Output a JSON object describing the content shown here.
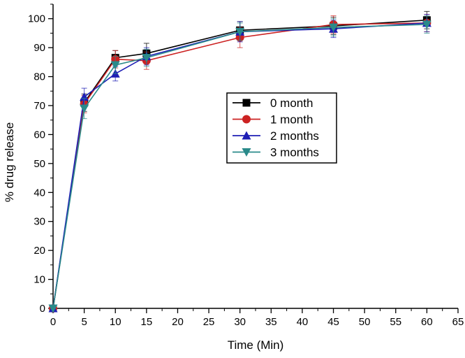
{
  "chart_data": {
    "type": "line",
    "title": "",
    "xlabel": "Time (Min)",
    "ylabel": "% drug release",
    "xlim": [
      0,
      65
    ],
    "ylim": [
      0,
      105
    ],
    "x_ticks": [
      0,
      5,
      10,
      15,
      20,
      25,
      30,
      35,
      40,
      45,
      50,
      55,
      60,
      65
    ],
    "y_ticks": [
      0,
      10,
      20,
      30,
      40,
      50,
      60,
      70,
      80,
      90,
      100
    ],
    "grid": false,
    "legend_position": "center-right",
    "x": [
      0,
      5,
      10,
      15,
      30,
      45,
      60
    ],
    "series": [
      {
        "name": "0 month",
        "color": "#000000",
        "marker": "square",
        "values": [
          0,
          71,
          86.5,
          88,
          96,
          97.5,
          99.5
        ],
        "errors": [
          0,
          3,
          2.5,
          3.5,
          3,
          3,
          3
        ]
      },
      {
        "name": "1 month",
        "color": "#cc2222",
        "marker": "circle",
        "values": [
          0,
          70.5,
          86,
          85.5,
          93.5,
          98,
          98.5
        ],
        "errors": [
          0,
          3,
          3,
          3,
          3.5,
          3,
          3
        ]
      },
      {
        "name": "2 months",
        "color": "#1f1fb5",
        "marker": "triangle-up",
        "values": [
          0,
          73,
          81,
          87,
          95.5,
          96.5,
          98.5
        ],
        "errors": [
          0,
          3,
          2.5,
          3,
          3.5,
          3,
          3
        ]
      },
      {
        "name": "3 months",
        "color": "#2a8a8a",
        "marker": "triangle-down",
        "values": [
          0,
          69,
          84,
          86.5,
          95.5,
          97,
          98
        ],
        "errors": [
          0,
          3.5,
          3,
          3,
          3,
          3,
          3
        ]
      }
    ]
  }
}
